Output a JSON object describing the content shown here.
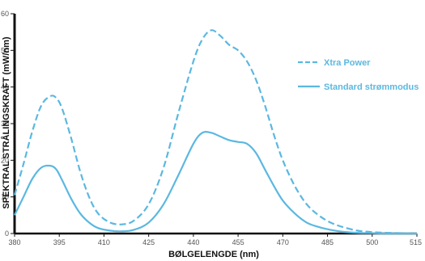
{
  "chart_data": {
    "type": "line",
    "title": "",
    "xlabel": "BØLGELENGDE (nm)",
    "ylabel": "SPEKTRAL STRÅLINGSKRAFT (mW/nm)",
    "xlim": [
      380,
      515
    ],
    "ylim": [
      0,
      60
    ],
    "x_ticks": [
      "380",
      "395",
      "410",
      "425",
      "440",
      "455",
      "470",
      "485",
      "500",
      "515"
    ],
    "y_ticks": [
      "0",
      "10",
      "20",
      "30",
      "40",
      "50",
      "60"
    ],
    "grid": false,
    "legend_position": "right",
    "series": [
      {
        "name": "Xtra Power",
        "style": "dashed",
        "color": "#5bb8e0",
        "x": [
          380,
          383,
          386,
          389,
          392,
          394,
          396,
          399,
          402,
          405,
          408,
          412,
          416,
          420,
          425,
          430,
          435,
          440,
          443,
          446,
          449,
          452,
          455,
          458,
          461,
          464,
          467,
          470,
          474,
          478,
          482,
          486,
          490,
          495,
          500,
          505,
          510,
          515
        ],
        "y": [
          10.5,
          19,
          28,
          35,
          37.5,
          37,
          34,
          26,
          17,
          10,
          5.5,
          3,
          2.5,
          3.5,
          8,
          18,
          33,
          47,
          53,
          55.5,
          54,
          51.5,
          50,
          47,
          42,
          35,
          27,
          20,
          13,
          8,
          5,
          3,
          1.8,
          0.8,
          0.4,
          0.2,
          0.1,
          0
        ]
      },
      {
        "name": "Standard strømmodus",
        "style": "solid",
        "color": "#5bb8e0",
        "x": [
          380,
          383,
          386,
          389,
          392,
          394,
          396,
          399,
          402,
          405,
          408,
          412,
          416,
          420,
          425,
          430,
          435,
          440,
          443,
          446,
          449,
          452,
          455,
          458,
          461,
          464,
          467,
          470,
          474,
          478,
          482,
          486,
          490,
          495,
          500,
          505,
          510,
          515
        ],
        "y": [
          5,
          10,
          15,
          18,
          18.5,
          17.5,
          14.5,
          9.5,
          5.5,
          3,
          1.5,
          0.8,
          0.6,
          1,
          3,
          8,
          16,
          24.5,
          27.5,
          27.5,
          26.5,
          25.5,
          25,
          24.5,
          22,
          17.5,
          13,
          9,
          5.5,
          3,
          1.8,
          1,
          0.5,
          0.2,
          0.1,
          0,
          0,
          0
        ]
      }
    ]
  }
}
